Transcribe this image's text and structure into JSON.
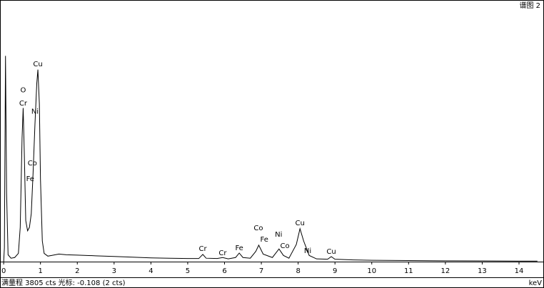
{
  "chart_data": {
    "type": "line",
    "title": "谱图 2",
    "footer": "满量程 3805 cts 光标: -0.108 (2 cts)",
    "xlabel": "keV",
    "color": "#000000",
    "xlim": [
      -0.08,
      14.64
    ],
    "ylim": [
      0,
      3805
    ],
    "xticks": [
      0,
      1,
      2,
      3,
      4,
      5,
      6,
      7,
      8,
      9,
      10,
      11,
      12,
      13,
      14
    ],
    "x": [
      0,
      0.02,
      0.05,
      0.08,
      0.12,
      0.2,
      0.3,
      0.4,
      0.45,
      0.5,
      0.53,
      0.56,
      0.6,
      0.65,
      0.7,
      0.75,
      0.8,
      0.85,
      0.9,
      0.93,
      0.97,
      1.0,
      1.05,
      1.1,
      1.2,
      1.3,
      1.5,
      1.7,
      2.0,
      2.5,
      3.0,
      3.5,
      4.0,
      4.5,
      5.0,
      5.3,
      5.41,
      5.5,
      5.8,
      5.95,
      6.1,
      6.3,
      6.4,
      6.5,
      6.7,
      6.85,
      6.93,
      7.05,
      7.3,
      7.48,
      7.6,
      7.75,
      7.95,
      8.05,
      8.15,
      8.3,
      8.5,
      8.8,
      8.9,
      9.0,
      9.5,
      10,
      11,
      12,
      13,
      14,
      14.5
    ],
    "values": [
      0,
      200,
      3000,
      1000,
      100,
      50,
      60,
      120,
      500,
      1800,
      2240,
      1600,
      600,
      450,
      500,
      700,
      1300,
      2000,
      2600,
      2800,
      2300,
      1200,
      300,
      120,
      80,
      90,
      110,
      100,
      95,
      85,
      75,
      65,
      55,
      50,
      45,
      45,
      105,
      50,
      45,
      60,
      40,
      60,
      125,
      60,
      50,
      150,
      240,
      110,
      60,
      185,
      90,
      50,
      250,
      480,
      300,
      90,
      40,
      35,
      73,
      35,
      25,
      20,
      15,
      12,
      10,
      8,
      8
    ],
    "annotations": [
      {
        "text": "Cu",
        "x": 0.93,
        "y": 2880
      },
      {
        "text": "O",
        "x": 0.53,
        "y": 2500
      },
      {
        "text": "Cr",
        "x": 0.53,
        "y": 2310
      },
      {
        "text": "Ni",
        "x": 0.85,
        "y": 2190
      },
      {
        "text": "Co",
        "x": 0.78,
        "y": 1435
      },
      {
        "text": "Fe",
        "x": 0.72,
        "y": 1205
      },
      {
        "text": "Cr",
        "x": 5.41,
        "y": 187
      },
      {
        "text": "Cr",
        "x": 5.95,
        "y": 125
      },
      {
        "text": "Fe",
        "x": 6.4,
        "y": 198
      },
      {
        "text": "Co",
        "x": 6.92,
        "y": 489
      },
      {
        "text": "Fe",
        "x": 7.08,
        "y": 322
      },
      {
        "text": "Ni",
        "x": 7.47,
        "y": 395
      },
      {
        "text": "Co",
        "x": 7.64,
        "y": 229
      },
      {
        "text": "Cu",
        "x": 8.05,
        "y": 562
      },
      {
        "text": "Ni",
        "x": 8.26,
        "y": 156
      },
      {
        "text": "Cu",
        "x": 8.9,
        "y": 146
      }
    ]
  }
}
